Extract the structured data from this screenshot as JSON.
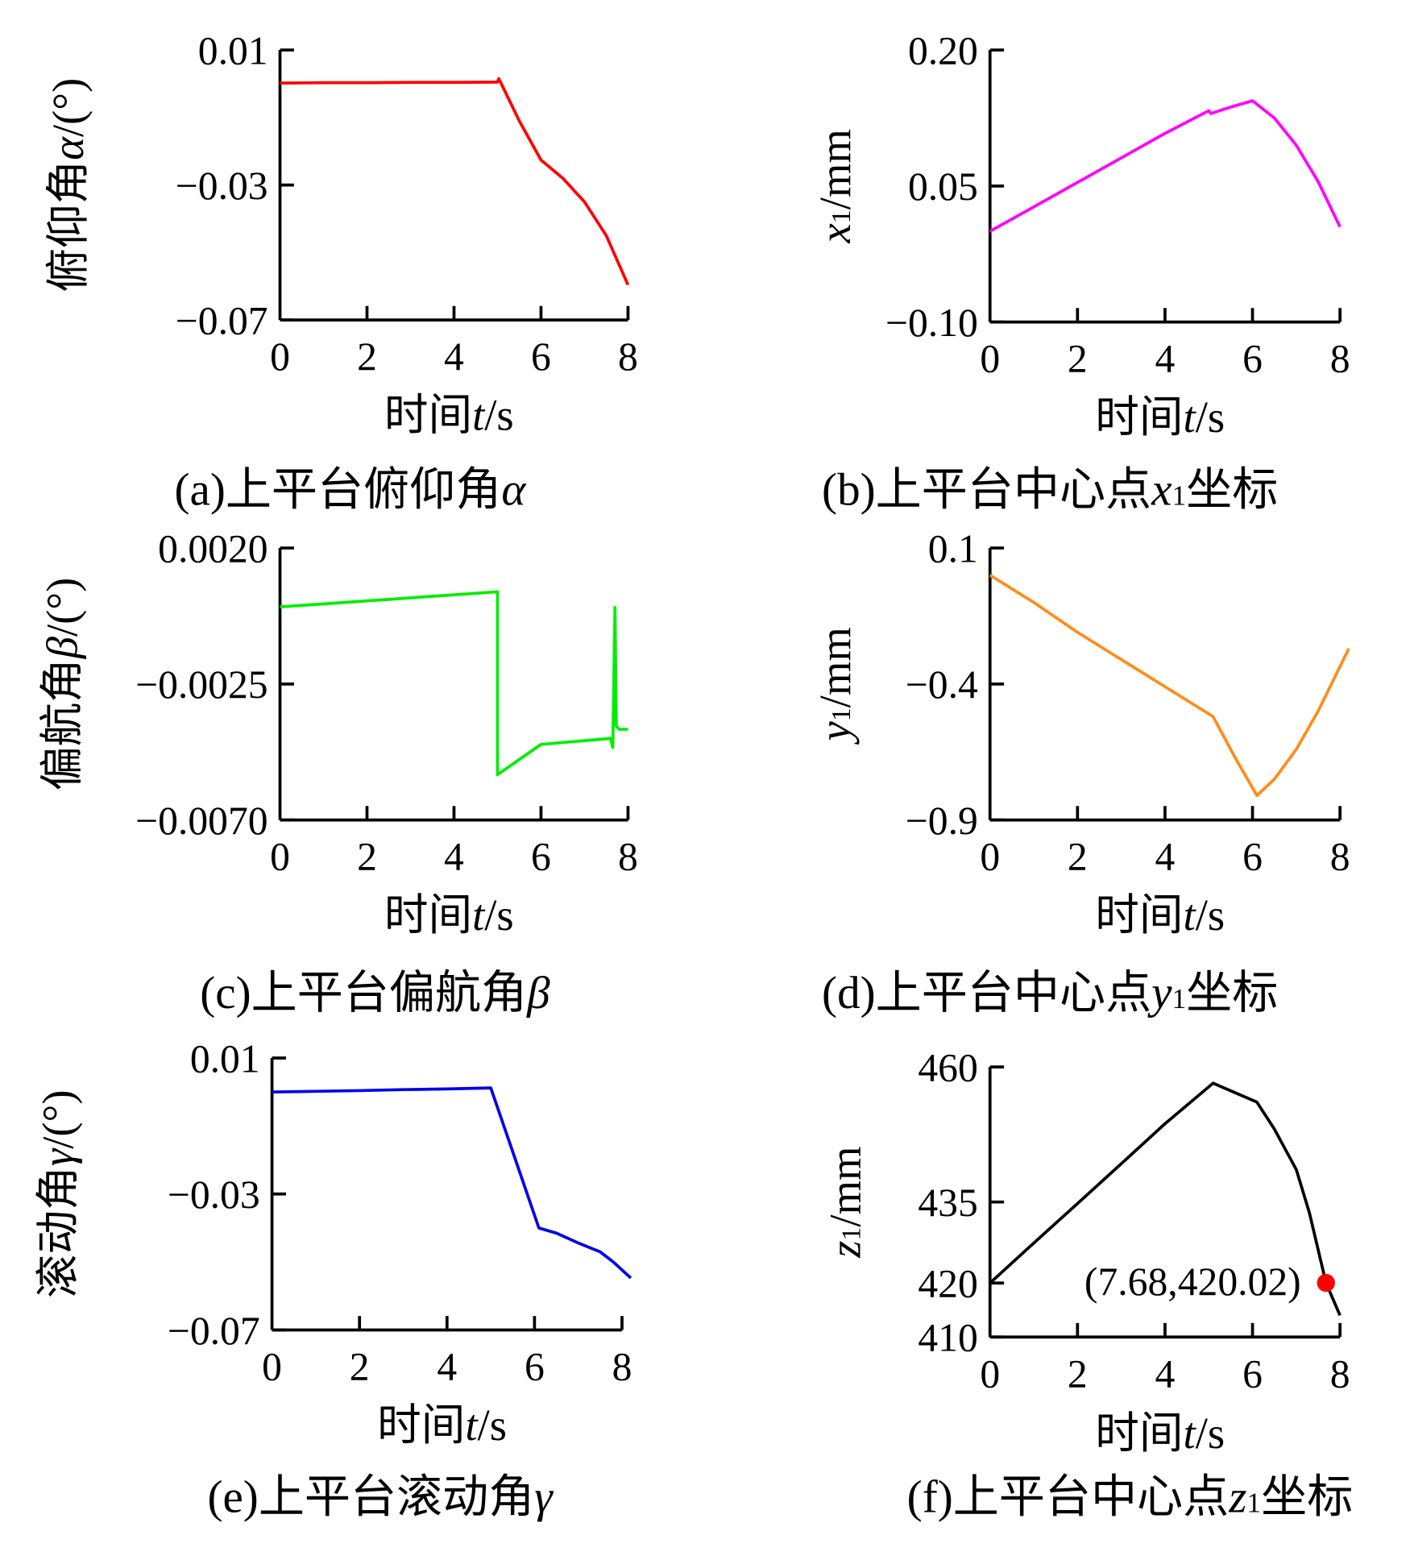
{
  "chart_data": [
    {
      "type": "line",
      "caption": {
        "label": "(a)",
        "text": "上平台俯仰角",
        "var": "α",
        "sub": "",
        "tail": ""
      },
      "ylabel": {
        "text": "俯仰角",
        "var": "α",
        "sub": "",
        "tail": "/(°)"
      },
      "xlabel": {
        "text": "时间",
        "var": "t",
        "tail": "/s"
      },
      "color": "#ff0000",
      "xlim": [
        0,
        8
      ],
      "ylim": [
        -0.07,
        0.01
      ],
      "xticks": [
        "0",
        "2",
        "4",
        "6",
        "8"
      ],
      "xtick_values": [
        0,
        2,
        4,
        6,
        8
      ],
      "yticks": [
        "0.01",
        "−0.03",
        "−0.07"
      ],
      "ytick_values": [
        0.01,
        -0.03,
        -0.07
      ],
      "x": [
        0,
        1,
        2,
        3,
        4,
        5,
        5.03,
        5.08,
        5.5,
        6,
        6.5,
        7,
        7.5,
        8
      ],
      "y": [
        0.0002,
        0.0003,
        0.0003,
        0.0004,
        0.0004,
        0.0005,
        0.0015,
        0.0002,
        -0.011,
        -0.0226,
        -0.028,
        -0.035,
        -0.045,
        -0.0596
      ]
    },
    {
      "type": "line",
      "caption": {
        "label": "(b)",
        "text": "上平台中心点",
        "var": "x",
        "sub": "1",
        "tail": "坐标"
      },
      "ylabel": {
        "text": "",
        "var": "x",
        "sub": "1",
        "tail": "/mm"
      },
      "xlabel": {
        "text": "时间",
        "var": "t",
        "tail": "/s"
      },
      "color": "#ff00ff",
      "xlim": [
        0,
        8
      ],
      "ylim": [
        -0.1,
        0.2
      ],
      "xticks": [
        "0",
        "2",
        "4",
        "6",
        "8"
      ],
      "xtick_values": [
        0,
        2,
        4,
        6,
        8
      ],
      "yticks": [
        "0.20",
        "0.05",
        "−0.10"
      ],
      "ytick_values": [
        0.2,
        0.05,
        -0.1
      ],
      "x": [
        0,
        1,
        2,
        3,
        4,
        5,
        5.05,
        5.5,
        6,
        6.5,
        7,
        7.5,
        8
      ],
      "y": [
        0.0,
        0.027,
        0.054,
        0.081,
        0.108,
        0.133,
        0.13,
        0.137,
        0.144,
        0.125,
        0.095,
        0.055,
        0.005
      ]
    },
    {
      "type": "line",
      "caption": {
        "label": "(c)",
        "text": "上平台偏航角",
        "var": "β",
        "sub": "",
        "tail": ""
      },
      "ylabel": {
        "text": "偏航角",
        "var": "β",
        "sub": "",
        "tail": "/(°)"
      },
      "xlabel": {
        "text": "时间",
        "var": "t",
        "tail": "/s"
      },
      "color": "#00ee00",
      "xlim": [
        0,
        8
      ],
      "ylim": [
        -0.007,
        0.002
      ],
      "xticks": [
        "0",
        "2",
        "4",
        "6",
        "8"
      ],
      "xtick_values": [
        0,
        2,
        4,
        6,
        8
      ],
      "yticks": [
        "0.0020",
        "−0.0025",
        "−0.0070"
      ],
      "ytick_values": [
        0.002,
        -0.0025,
        -0.007
      ],
      "x": [
        0,
        5,
        5.0,
        6,
        7.6,
        7.65,
        7.7,
        7.73,
        7.8,
        8
      ],
      "y": [
        5e-05,
        0.00055,
        -0.0055,
        -0.0045,
        -0.0043,
        -0.0046,
        3e-05,
        -0.0039,
        -0.004,
        -0.004
      ]
    },
    {
      "type": "line",
      "caption": {
        "label": "(d)",
        "text": "上平台中心点",
        "var": "y",
        "sub": "1",
        "tail": "坐标"
      },
      "ylabel": {
        "text": "",
        "var": "y",
        "sub": "1",
        "tail": "/mm"
      },
      "xlabel": {
        "text": "时间",
        "var": "t",
        "tail": "/s"
      },
      "color": "#ff8c1a",
      "xlim": [
        0,
        8
      ],
      "ylim": [
        -0.9,
        0.1
      ],
      "xticks": [
        "0",
        "2",
        "4",
        "6",
        "8"
      ],
      "xtick_values": [
        0,
        2,
        4,
        6,
        8
      ],
      "yticks": [
        "0.1",
        "−0.4",
        "−0.9"
      ],
      "ytick_values": [
        0.1,
        -0.4,
        -0.9
      ],
      "x": [
        0,
        1,
        2,
        3,
        4,
        5.1,
        5.6,
        6.1,
        6.5,
        7,
        7.5,
        8.2
      ],
      "y": [
        0.0,
        -0.1,
        -0.21,
        -0.31,
        -0.41,
        -0.52,
        -0.67,
        -0.81,
        -0.75,
        -0.64,
        -0.5,
        -0.27
      ]
    },
    {
      "type": "line",
      "caption": {
        "label": "(e)",
        "text": "上平台滚动角",
        "var": "γ",
        "sub": "",
        "tail": ""
      },
      "ylabel": {
        "text": "滚动角",
        "var": "γ",
        "sub": "",
        "tail": "/(°)"
      },
      "xlabel": {
        "text": "时间",
        "var": "t",
        "tail": "/s"
      },
      "color": "#0000ee",
      "xlim": [
        0,
        8
      ],
      "ylim": [
        -0.07,
        0.01
      ],
      "xticks": [
        "0",
        "2",
        "4",
        "6",
        "8"
      ],
      "xtick_values": [
        0,
        2,
        4,
        6,
        8
      ],
      "yticks": [
        "0.01",
        "−0.03",
        "−0.07"
      ],
      "ytick_values": [
        0.01,
        -0.03,
        -0.07
      ],
      "x": [
        0,
        1,
        2,
        3,
        4,
        5,
        6.1,
        6.5,
        7,
        7.5,
        7.8,
        8.2
      ],
      "y": [
        0.0,
        0.0002,
        0.0004,
        0.0007,
        0.0009,
        0.0012,
        -0.04,
        -0.0415,
        -0.0444,
        -0.047,
        -0.05,
        -0.0547
      ]
    },
    {
      "type": "line",
      "caption": {
        "label": "(f)",
        "text": "上平台中心点",
        "var": "z",
        "sub": "1",
        "tail": "坐标"
      },
      "ylabel": {
        "text": "",
        "var": "z",
        "sub": "1",
        "tail": "/mm"
      },
      "xlabel": {
        "text": "时间",
        "var": "t",
        "tail": "/s"
      },
      "color": "#000000",
      "xlim": [
        0,
        8
      ],
      "ylim": [
        410,
        460
      ],
      "xticks": [
        "0",
        "2",
        "4",
        "6",
        "8"
      ],
      "xtick_values": [
        0,
        2,
        4,
        6,
        8
      ],
      "yticks": [
        "460",
        "435",
        "420",
        "410"
      ],
      "ytick_values": [
        460,
        435,
        420,
        410
      ],
      "x": [
        0,
        1,
        2,
        3,
        4,
        5.1,
        6.1,
        6.5,
        7,
        7.3,
        7.68,
        8
      ],
      "y": [
        420,
        427.4,
        434.7,
        442.1,
        449.5,
        457,
        453.5,
        448.5,
        441,
        433,
        420.02,
        414
      ],
      "annotation": {
        "label": "(7.68,420.02)",
        "x": 7.68,
        "y": 420.02,
        "color": "#ff0000"
      }
    }
  ]
}
